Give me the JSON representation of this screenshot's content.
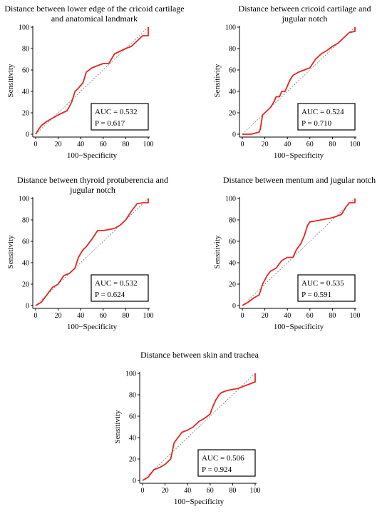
{
  "chart_data": [
    {
      "type": "line",
      "title": "Distance between lower edge of the cricoid cartilage and anatomical landmark",
      "xlabel": "100−Specificity",
      "ylabel": "Sensitivity",
      "xlim": [
        0,
        100
      ],
      "ylim": [
        0,
        100
      ],
      "xticks": [
        "0",
        "20",
        "40",
        "60",
        "80",
        "100"
      ],
      "yticks": [
        "0",
        "20",
        "40",
        "60",
        "80",
        "100"
      ],
      "reference_line": "diagonal",
      "auc_label": "AUC = 0.532",
      "p_label": "P = 0.617",
      "series": [
        {
          "color": "#e8231f",
          "x": [
            0,
            3,
            5,
            10,
            20,
            28,
            32,
            35,
            38,
            42,
            45,
            50,
            55,
            60,
            65,
            70,
            80,
            85,
            90,
            95,
            100,
            100
          ],
          "y": [
            0,
            5,
            8,
            12,
            18,
            22,
            30,
            40,
            43,
            48,
            58,
            62,
            64,
            66,
            66,
            75,
            80,
            82,
            87,
            92,
            92,
            100
          ]
        }
      ]
    },
    {
      "type": "line",
      "title": "Distance between cricoid cartilage and jugular notch",
      "xlabel": "100−Specificity",
      "ylabel": "Sensitivity",
      "xlim": [
        0,
        100
      ],
      "ylim": [
        0,
        100
      ],
      "xticks": [
        "0",
        "20",
        "40",
        "60",
        "80",
        "100"
      ],
      "yticks": [
        "0",
        "20",
        "40",
        "60",
        "80",
        "100"
      ],
      "reference_line": "diagonal",
      "auc_label": "AUC = 0.524",
      "p_label": "P = 0.710",
      "series": [
        {
          "color": "#e8231f",
          "x": [
            0,
            8,
            15,
            16,
            18,
            22,
            25,
            28,
            30,
            33,
            35,
            38,
            42,
            45,
            50,
            55,
            60,
            65,
            70,
            75,
            80,
            85,
            90,
            95,
            100,
            100
          ],
          "y": [
            0,
            0,
            2,
            5,
            18,
            22,
            25,
            30,
            35,
            35,
            40,
            40,
            50,
            55,
            58,
            60,
            62,
            70,
            75,
            78,
            82,
            85,
            90,
            95,
            96,
            100
          ]
        }
      ]
    },
    {
      "type": "line",
      "title": "Distance between thyroid protuberencia and jugular notch",
      "xlabel": "100−Specificity",
      "ylabel": "Sensitivity",
      "xlim": [
        0,
        100
      ],
      "ylim": [
        0,
        100
      ],
      "xticks": [
        "0",
        "20",
        "40",
        "60",
        "80",
        "100"
      ],
      "yticks": [
        "0",
        "20",
        "40",
        "60",
        "80",
        "100"
      ],
      "reference_line": "diagonal",
      "auc_label": "AUC = 0.532",
      "p_label": "P = 0.624",
      "series": [
        {
          "color": "#e8231f",
          "x": [
            0,
            5,
            10,
            15,
            20,
            25,
            30,
            35,
            38,
            42,
            45,
            50,
            55,
            60,
            65,
            70,
            75,
            80,
            85,
            90,
            95,
            100,
            100
          ],
          "y": [
            0,
            3,
            10,
            17,
            20,
            28,
            30,
            35,
            45,
            52,
            55,
            62,
            70,
            70,
            71,
            72,
            75,
            80,
            88,
            95,
            96,
            96,
            100
          ]
        }
      ]
    },
    {
      "type": "line",
      "title": "Distance between mentum and jugular notch",
      "xlabel": "100−Specificity",
      "ylabel": "Sensitivity",
      "xlim": [
        0,
        100
      ],
      "ylim": [
        0,
        100
      ],
      "xticks": [
        "0",
        "20",
        "40",
        "60",
        "80",
        "100"
      ],
      "yticks": [
        "0",
        "20",
        "40",
        "60",
        "80",
        "100"
      ],
      "reference_line": "diagonal",
      "auc_label": "AUC = 0.535",
      "p_label": "P = 0.591",
      "series": [
        {
          "color": "#e8231f",
          "x": [
            0,
            5,
            10,
            15,
            18,
            22,
            25,
            30,
            35,
            40,
            45,
            48,
            52,
            55,
            58,
            60,
            70,
            80,
            88,
            92,
            95,
            100,
            100
          ],
          "y": [
            0,
            3,
            7,
            10,
            20,
            28,
            32,
            35,
            42,
            45,
            45,
            52,
            58,
            65,
            75,
            78,
            80,
            82,
            85,
            92,
            96,
            96,
            100
          ]
        }
      ]
    },
    {
      "type": "line",
      "title": "Distance between skin and trachea",
      "xlabel": "100−Specificity",
      "ylabel": "Sensitivity",
      "xlim": [
        0,
        100
      ],
      "ylim": [
        0,
        100
      ],
      "xticks": [
        "0",
        "20",
        "40",
        "60",
        "80",
        "100"
      ],
      "yticks": [
        "0",
        "20",
        "40",
        "60",
        "80",
        "100"
      ],
      "reference_line": "diagonal",
      "auc_label": "AUC = 0.506",
      "p_label": "P = 0.924",
      "series": [
        {
          "color": "#e8231f",
          "x": [
            0,
            5,
            10,
            15,
            20,
            25,
            28,
            30,
            35,
            40,
            45,
            50,
            55,
            60,
            62,
            65,
            68,
            70,
            75,
            80,
            85,
            90,
            95,
            100,
            100
          ],
          "y": [
            0,
            3,
            10,
            12,
            15,
            20,
            35,
            38,
            45,
            47,
            50,
            55,
            58,
            62,
            68,
            75,
            80,
            82,
            84,
            85,
            86,
            88,
            90,
            92,
            100
          ]
        }
      ]
    }
  ]
}
